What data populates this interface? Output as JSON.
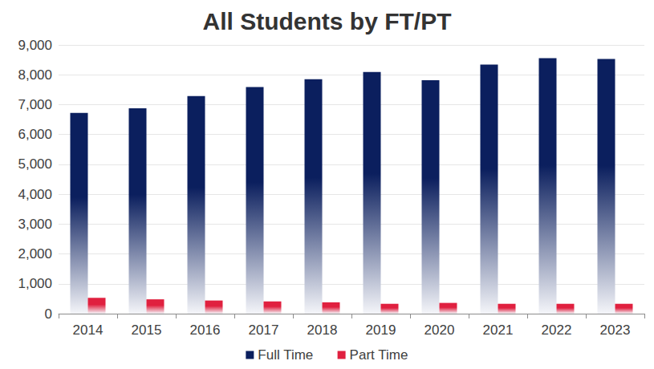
{
  "chart_data": {
    "type": "bar",
    "title": "All Students by FT/PT",
    "categories": [
      "2014",
      "2015",
      "2016",
      "2017",
      "2018",
      "2019",
      "2020",
      "2021",
      "2022",
      "2023"
    ],
    "series": [
      {
        "name": "Full Time",
        "color": "#0b1f5e",
        "values": [
          6720,
          6880,
          7290,
          7590,
          7850,
          8090,
          7820,
          8340,
          8560,
          8530
        ]
      },
      {
        "name": "Part Time",
        "color": "#e0203f",
        "values": [
          530,
          480,
          440,
          410,
          380,
          330,
          360,
          330,
          330,
          330
        ]
      }
    ],
    "ylim": [
      0,
      9000
    ],
    "yticks": [
      0,
      {
        "value": 1000,
        "label": "1,000"
      },
      {
        "value": 2000,
        "label": "2,000"
      },
      {
        "value": 3000,
        "label": "3,000"
      },
      {
        "value": 4000,
        "label": "4,000"
      },
      {
        "value": 5000,
        "label": "5,000"
      },
      {
        "value": 6000,
        "label": "6,000"
      },
      {
        "value": 7000,
        "label": "7,000"
      },
      {
        "value": 8000,
        "label": "8,000"
      },
      {
        "value": 9000,
        "label": "9,000"
      }
    ],
    "grid": true,
    "legend": "bottom"
  }
}
